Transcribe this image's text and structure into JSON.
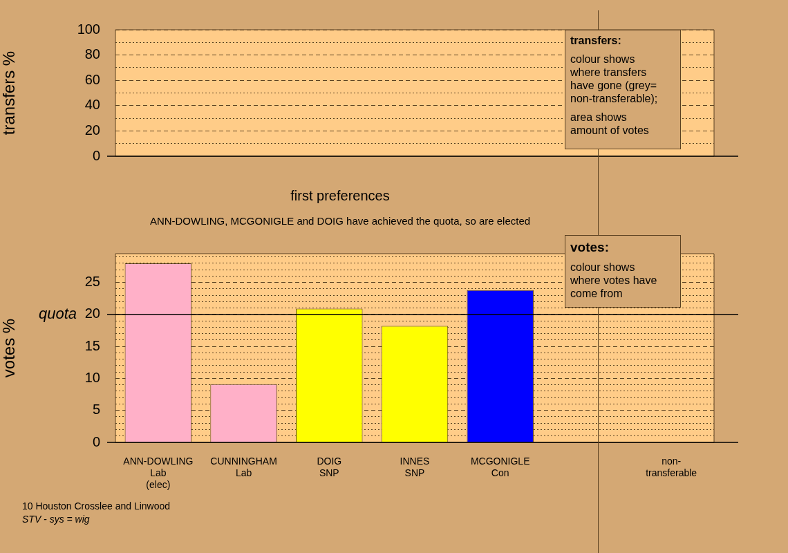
{
  "chart_data": [
    {
      "type": "bar",
      "ylabel": "transfers %",
      "categories": [
        null,
        null,
        null,
        null,
        null,
        null,
        null
      ],
      "values": [
        null,
        null,
        null,
        null,
        null,
        null,
        null
      ],
      "ylim": [
        0,
        100
      ],
      "yticks": [
        0,
        {
          "value": 10,
          "label": null
        },
        20,
        {
          "value": 30,
          "label": null
        },
        40,
        {
          "value": 50,
          "label": null
        },
        60,
        {
          "value": 70,
          "label": null
        },
        80,
        {
          "value": 90,
          "label": null
        },
        100
      ],
      "grid": "y",
      "legend": false,
      "tick_labels": "y",
      "annotations": [
        "transfers:",
        "colour shows where transfers have gone (grey= non-transferable);",
        "area shows amount of votes"
      ]
    },
    {
      "type": "bar",
      "title": "first preferences",
      "subtitle": "ANN-DOWLING, MCGONIGLE and DOIG have achieved the quota, so are elected",
      "ylabel": "votes %",
      "categories": [
        "ANN-DOWLING\nLab\n(elec)",
        "CUNNINGHAM\nLab",
        "DOIG\nSNP",
        "INNES\nSNP",
        "MCGONIGLE\nCon",
        null,
        "non-\ntransferable"
      ],
      "values": [
        28.0,
        9.1,
        20.9,
        18.2,
        23.8,
        null,
        null
      ],
      "colors": [
        "#ffb0c8",
        "#ffb0c8",
        "#ffff00",
        "#ffff00",
        "#0000ff",
        "#0000ff",
        "#bbbbbb"
      ],
      "ylim": [
        0,
        29.5
      ],
      "yticks": [
        0,
        {
          "value": 1,
          "label": null
        },
        {
          "value": 2,
          "label": null
        },
        {
          "value": 3,
          "label": null
        },
        {
          "value": 4,
          "label": null
        },
        5,
        {
          "value": 6,
          "label": null
        },
        {
          "value": 7,
          "label": null
        },
        {
          "value": 8,
          "label": null
        },
        {
          "value": 9,
          "label": null
        },
        10,
        {
          "value": 11,
          "label": null
        },
        {
          "value": 12,
          "label": null
        },
        {
          "value": 13,
          "label": null
        },
        {
          "value": 14,
          "label": null
        },
        15,
        {
          "value": 16,
          "label": null
        },
        {
          "value": 17,
          "label": null
        },
        {
          "value": 18,
          "label": null
        },
        {
          "value": 19,
          "label": null
        },
        20,
        {
          "value": 21,
          "label": null
        },
        {
          "value": 22,
          "label": null
        },
        {
          "value": 23,
          "label": null
        },
        {
          "value": 24,
          "label": null
        },
        25,
        {
          "value": 26,
          "label": null
        },
        {
          "value": 27,
          "label": null
        },
        {
          "value": 28,
          "label": null
        },
        {
          "value": 29,
          "label": null
        }
      ],
      "grid": "y",
      "legend": false,
      "ref_lines": [
        {
          "axis": "y",
          "value": 20,
          "label": "quota"
        }
      ],
      "annotations": [
        "votes:",
        "colour shows where votes have come from",
        "10 Houston Crosslee and Linwood",
        "STV - sys = wig"
      ]
    }
  ]
}
